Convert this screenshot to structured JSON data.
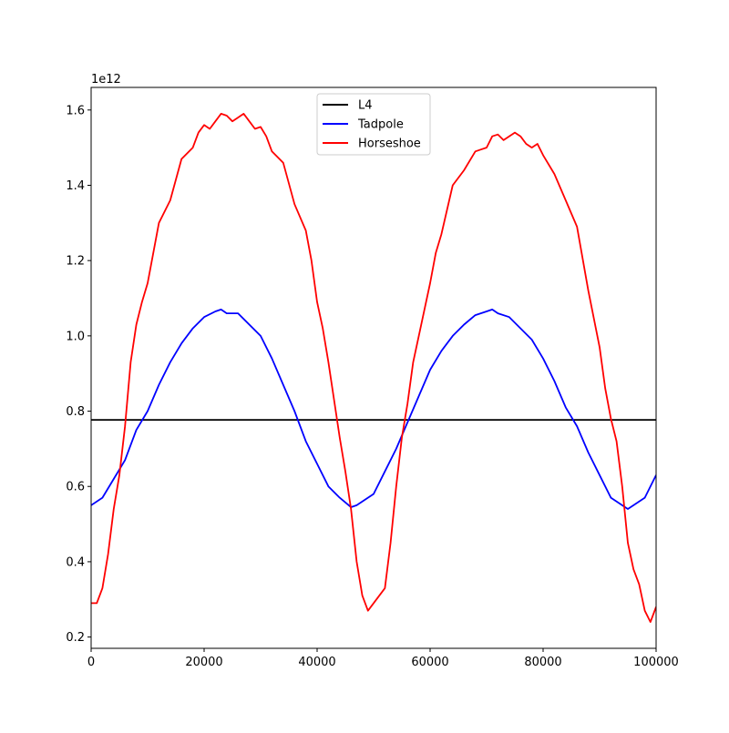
{
  "chart_data": {
    "type": "line",
    "title": "",
    "xlabel": "",
    "ylabel": "",
    "y_offset_label": "1e12",
    "y_scale": 1000000000000,
    "xlim": [
      0,
      100000
    ],
    "ylim": [
      0.17,
      1.66
    ],
    "xticks": [
      0,
      20000,
      40000,
      60000,
      80000,
      100000
    ],
    "xtick_labels": [
      "0",
      "20000",
      "40000",
      "60000",
      "80000",
      "100000"
    ],
    "yticks": [
      0.2,
      0.4,
      0.6,
      0.8,
      1.0,
      1.2,
      1.4,
      1.6
    ],
    "ytick_labels": [
      "0.2",
      "0.4",
      "0.6",
      "0.8",
      "1.0",
      "1.2",
      "1.4",
      "1.6"
    ],
    "grid": false,
    "legend_position": "top-center",
    "series": [
      {
        "name": "L4",
        "color": "#000000",
        "x": [
          0,
          100000
        ],
        "y": [
          0.777,
          0.777
        ]
      },
      {
        "name": "Tadpole",
        "color": "#0000ff",
        "x": [
          0,
          2000,
          4000,
          6000,
          8000,
          10000,
          12000,
          14000,
          16000,
          18000,
          20000,
          22000,
          23000,
          24000,
          26000,
          28000,
          30000,
          32000,
          34000,
          36000,
          38000,
          40000,
          42000,
          44000,
          46000,
          47000,
          48000,
          50000,
          52000,
          54000,
          56000,
          58000,
          60000,
          62000,
          64000,
          66000,
          68000,
          70000,
          71000,
          72000,
          74000,
          76000,
          78000,
          80000,
          82000,
          84000,
          86000,
          88000,
          90000,
          92000,
          94000,
          95000,
          96000,
          98000,
          100000
        ],
        "y": [
          0.55,
          0.57,
          0.62,
          0.67,
          0.75,
          0.8,
          0.87,
          0.93,
          0.98,
          1.02,
          1.05,
          1.065,
          1.07,
          1.06,
          1.06,
          1.03,
          1.0,
          0.94,
          0.87,
          0.8,
          0.72,
          0.66,
          0.6,
          0.57,
          0.545,
          0.55,
          0.56,
          0.58,
          0.64,
          0.7,
          0.77,
          0.84,
          0.91,
          0.96,
          1.0,
          1.03,
          1.055,
          1.065,
          1.07,
          1.06,
          1.05,
          1.02,
          0.99,
          0.94,
          0.88,
          0.81,
          0.76,
          0.69,
          0.63,
          0.57,
          0.55,
          0.54,
          0.55,
          0.57,
          0.63
        ]
      },
      {
        "name": "Horseshoe",
        "color": "#ff0000",
        "x": [
          0,
          1000,
          2000,
          3000,
          4000,
          5000,
          6000,
          7000,
          8000,
          9000,
          10000,
          11000,
          12000,
          14000,
          16000,
          18000,
          19000,
          20000,
          21000,
          22000,
          23000,
          24000,
          25000,
          26000,
          27000,
          28000,
          29000,
          30000,
          31000,
          32000,
          34000,
          36000,
          38000,
          39000,
          40000,
          41000,
          42000,
          43000,
          44000,
          45000,
          46000,
          47000,
          48000,
          49000,
          50000,
          52000,
          53000,
          54000,
          55000,
          56000,
          57000,
          58000,
          59000,
          60000,
          61000,
          62000,
          64000,
          66000,
          68000,
          69000,
          70000,
          71000,
          72000,
          73000,
          74000,
          75000,
          76000,
          77000,
          78000,
          79000,
          80000,
          82000,
          84000,
          86000,
          88000,
          90000,
          91000,
          92000,
          93000,
          94000,
          95000,
          96000,
          97000,
          98000,
          99000,
          100000
        ],
        "y": [
          0.29,
          0.29,
          0.33,
          0.42,
          0.54,
          0.63,
          0.76,
          0.93,
          1.03,
          1.09,
          1.14,
          1.22,
          1.3,
          1.36,
          1.47,
          1.5,
          1.54,
          1.56,
          1.55,
          1.57,
          1.59,
          1.585,
          1.57,
          1.58,
          1.59,
          1.57,
          1.55,
          1.555,
          1.53,
          1.49,
          1.46,
          1.35,
          1.28,
          1.2,
          1.09,
          1.02,
          0.93,
          0.83,
          0.73,
          0.64,
          0.54,
          0.4,
          0.31,
          0.27,
          0.29,
          0.33,
          0.45,
          0.6,
          0.73,
          0.82,
          0.93,
          1.0,
          1.07,
          1.14,
          1.22,
          1.27,
          1.4,
          1.44,
          1.49,
          1.495,
          1.5,
          1.53,
          1.535,
          1.52,
          1.53,
          1.54,
          1.53,
          1.51,
          1.5,
          1.51,
          1.48,
          1.43,
          1.36,
          1.29,
          1.12,
          0.97,
          0.86,
          0.78,
          0.72,
          0.6,
          0.45,
          0.38,
          0.34,
          0.27,
          0.24,
          0.28
        ]
      }
    ]
  }
}
